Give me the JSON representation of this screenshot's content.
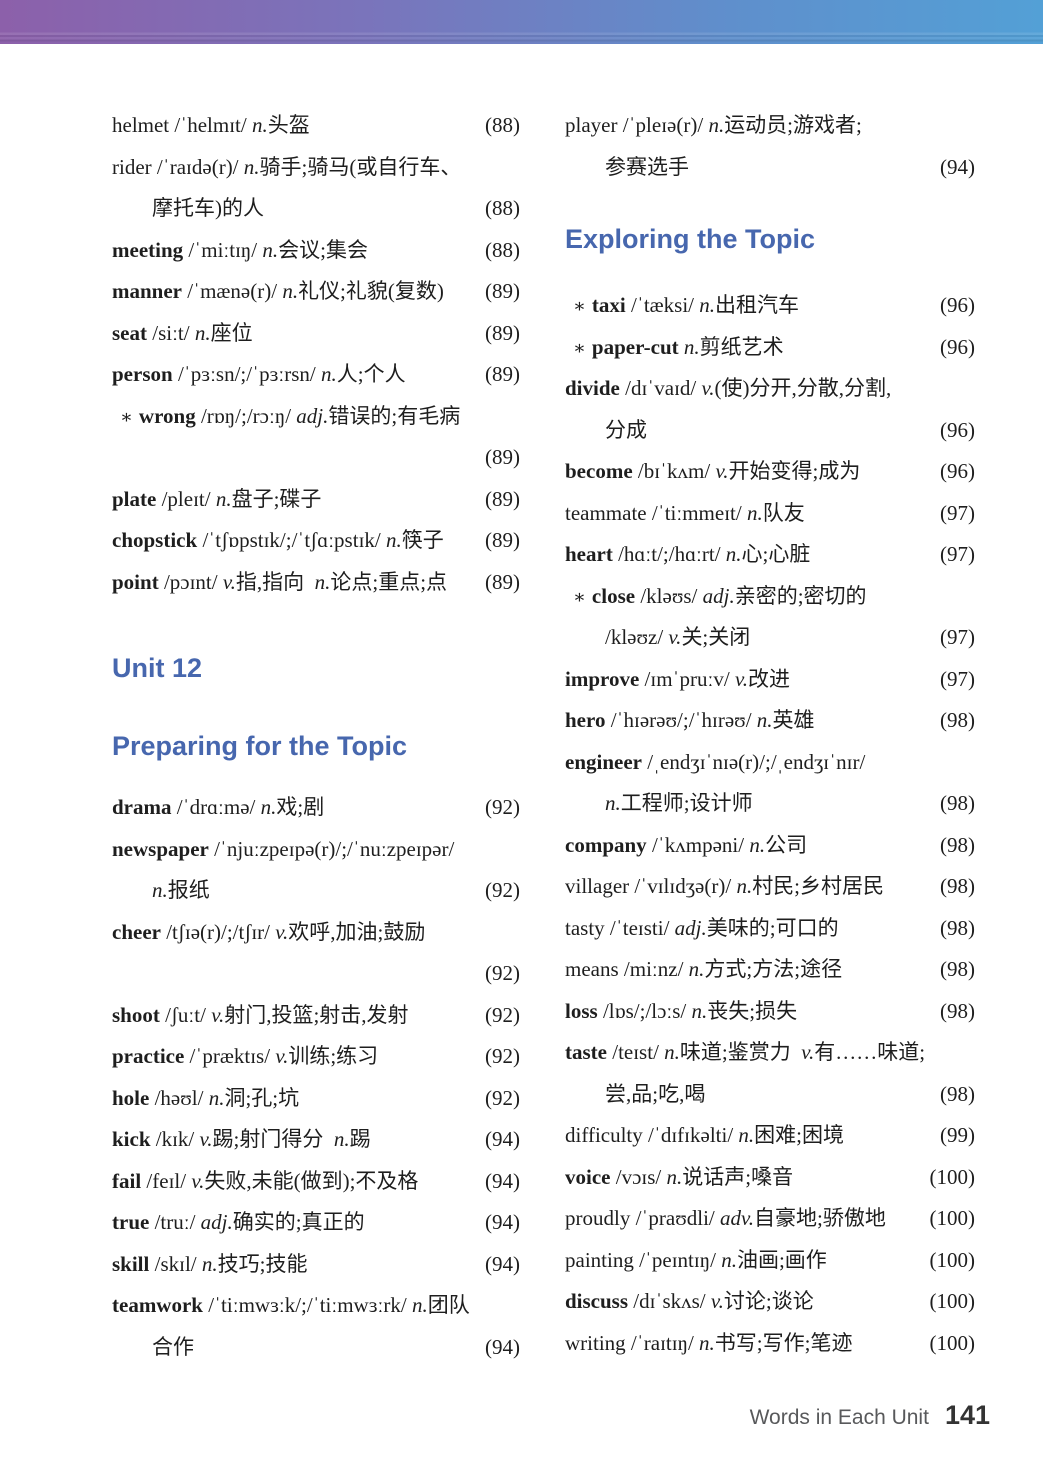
{
  "footer": {
    "label": "Words in Each Unit",
    "page_number": "141"
  },
  "colors": {
    "header_blue": "#4767ae",
    "gradient_left": "#8c60aa",
    "gradient_right": "#53a0d6",
    "body_text": "#1e1e1e",
    "footer_gray": "#58595b"
  },
  "left_column": {
    "unit_header": "Unit 12",
    "section_header": "Preparing for the Topic",
    "entries_top": [
      {
        "star": false,
        "bold": false,
        "word": "helmet",
        "head": " /ˈhelmɪt/ n.头盔",
        "page": "(88)",
        "cont": []
      },
      {
        "star": false,
        "bold": false,
        "word": "rider",
        "head": " /ˈraɪdə(r)/ n.骑手;骑马(或自行车、",
        "page": null,
        "cont": [
          {
            "text": "摩托车)的人",
            "page": "(88)"
          }
        ]
      },
      {
        "star": false,
        "bold": true,
        "word": "meeting",
        "head": " /ˈmiːtɪŋ/ n.会议;集会",
        "page": "(88)",
        "cont": []
      },
      {
        "star": false,
        "bold": true,
        "word": "manner",
        "head": " /ˈmænə(r)/ n.礼仪;礼貌(复数)",
        "page": "(89)",
        "cont": []
      },
      {
        "star": false,
        "bold": true,
        "word": "seat",
        "head": " /siːt/ n.座位",
        "page": "(89)",
        "cont": []
      },
      {
        "star": false,
        "bold": true,
        "word": "person",
        "head": " /ˈpɜːsn/;/ˈpɜːrsn/ n.人;个人",
        "page": "(89)",
        "cont": []
      },
      {
        "star": true,
        "bold": true,
        "word": "wrong",
        "head": " /rɒŋ/;/rɔːŋ/ adj.错误的;有毛病",
        "page": null,
        "cont": [
          {
            "text": "",
            "page": "(89)"
          }
        ]
      },
      {
        "star": false,
        "bold": true,
        "word": "plate",
        "head": " /pleɪt/ n.盘子;碟子",
        "page": "(89)",
        "cont": []
      },
      {
        "star": false,
        "bold": true,
        "word": "chopstick",
        "head": " /ˈtʃɒpstɪk/;/ˈtʃɑːpstɪk/ n.筷子",
        "page": "(89)",
        "cont": []
      },
      {
        "star": false,
        "bold": true,
        "word": "point",
        "head": " /pɔɪnt/ v.指,指向  n.论点;重点;点",
        "page": "(89)",
        "cont": []
      }
    ],
    "entries_bottom": [
      {
        "star": false,
        "bold": true,
        "word": "drama",
        "head": " /ˈdrɑːmə/ n.戏;剧",
        "page": "(92)",
        "cont": []
      },
      {
        "star": false,
        "bold": true,
        "word": "newspaper",
        "head": " /ˈnjuːzpeɪpə(r)/;/ˈnuːzpeɪpər/",
        "page": null,
        "cont": [
          {
            "text": "n.报纸",
            "page": "(92)"
          }
        ]
      },
      {
        "star": false,
        "bold": true,
        "word": "cheer",
        "head": " /tʃɪə(r)/;/tʃɪr/ v.欢呼,加油;鼓励",
        "page": null,
        "cont": [
          {
            "text": "",
            "page": "(92)"
          }
        ]
      },
      {
        "star": false,
        "bold": true,
        "word": "shoot",
        "head": " /ʃuːt/ v.射门,投篮;射击,发射",
        "page": "(92)",
        "cont": []
      },
      {
        "star": false,
        "bold": true,
        "word": "practice",
        "head": " /ˈpræktɪs/ v.训练;练习",
        "page": "(92)",
        "cont": []
      },
      {
        "star": false,
        "bold": true,
        "word": "hole",
        "head": " /həʊl/ n.洞;孔;坑",
        "page": "(92)",
        "cont": []
      },
      {
        "star": false,
        "bold": true,
        "word": "kick",
        "head": " /kɪk/ v.踢;射门得分  n.踢",
        "page": "(94)",
        "cont": []
      },
      {
        "star": false,
        "bold": true,
        "word": "fail",
        "head": " /feɪl/ v.失败,未能(做到);不及格",
        "page": "(94)",
        "cont": []
      },
      {
        "star": false,
        "bold": true,
        "word": "true",
        "head": " /truː/ adj.确实的;真正的",
        "page": "(94)",
        "cont": []
      },
      {
        "star": false,
        "bold": true,
        "word": "skill",
        "head": " /skɪl/ n.技巧;技能",
        "page": "(94)",
        "cont": []
      },
      {
        "star": false,
        "bold": true,
        "word": "teamwork",
        "head": " /ˈtiːmwɜːk/;/ˈtiːmwɜːrk/ n.团队",
        "page": null,
        "cont": [
          {
            "text": "合作",
            "page": "(94)"
          }
        ]
      }
    ]
  },
  "right_column": {
    "section_header": "Exploring the Topic",
    "entries_top": [
      {
        "star": false,
        "bold": false,
        "word": "player",
        "head": " /ˈpleɪə(r)/ n.运动员;游戏者;",
        "page": null,
        "cont": [
          {
            "text": "参赛选手",
            "page": "(94)"
          }
        ]
      }
    ],
    "entries_bottom": [
      {
        "star": true,
        "bold": true,
        "word": "taxi",
        "head": " /ˈtæksi/ n.出租汽车",
        "page": "(96)",
        "cont": []
      },
      {
        "star": true,
        "bold": true,
        "word": "paper-cut",
        "head": " n.剪纸艺术",
        "page": "(96)",
        "cont": []
      },
      {
        "star": false,
        "bold": true,
        "word": "divide",
        "head": " /dɪˈvaɪd/ v.(使)分开,分散,分割,",
        "page": null,
        "cont": [
          {
            "text": "分成",
            "page": "(96)"
          }
        ]
      },
      {
        "star": false,
        "bold": true,
        "word": "become",
        "head": " /bɪˈkʌm/ v.开始变得;成为",
        "page": "(96)",
        "cont": []
      },
      {
        "star": false,
        "bold": false,
        "word": "teammate",
        "head": " /ˈtiːmmeɪt/ n.队友",
        "page": "(97)",
        "cont": []
      },
      {
        "star": false,
        "bold": true,
        "word": "heart",
        "head": " /hɑːt/;/hɑːrt/ n.心;心脏",
        "page": "(97)",
        "cont": []
      },
      {
        "star": true,
        "bold": true,
        "word": "close",
        "head": " /kləʊs/ adj.亲密的;密切的",
        "page": null,
        "cont": [
          {
            "text": "/kləʊz/ v.关;关闭",
            "page": "(97)"
          }
        ]
      },
      {
        "star": false,
        "bold": true,
        "word": "improve",
        "head": " /ɪmˈpruːv/ v.改进",
        "page": "(97)",
        "cont": []
      },
      {
        "star": false,
        "bold": true,
        "word": "hero",
        "head": " /ˈhɪərəʊ/;/ˈhɪrəʊ/ n.英雄",
        "page": "(98)",
        "cont": []
      },
      {
        "star": false,
        "bold": true,
        "word": "engineer",
        "head": " /ˌendʒɪˈnɪə(r)/;/ˌendʒɪˈnɪr/",
        "page": null,
        "cont": [
          {
            "text": "n.工程师;设计师",
            "page": "(98)"
          }
        ]
      },
      {
        "star": false,
        "bold": true,
        "word": "company",
        "head": " /ˈkʌmpəni/ n.公司",
        "page": "(98)",
        "cont": []
      },
      {
        "star": false,
        "bold": false,
        "word": "villager",
        "head": " /ˈvɪlɪdʒə(r)/ n.村民;乡村居民",
        "page": "(98)",
        "cont": []
      },
      {
        "star": false,
        "bold": false,
        "word": "tasty",
        "head": " /ˈteɪsti/ adj.美味的;可口的",
        "page": "(98)",
        "cont": []
      },
      {
        "star": false,
        "bold": false,
        "word": "means",
        "head": " /miːnz/ n.方式;方法;途径",
        "page": "(98)",
        "cont": []
      },
      {
        "star": false,
        "bold": true,
        "word": "loss",
        "head": " /lɒs/;/lɔːs/ n.丧失;损失",
        "page": "(98)",
        "cont": []
      },
      {
        "star": false,
        "bold": true,
        "word": "taste",
        "head": " /teɪst/ n.味道;鉴赏力  v.有……味道;",
        "page": null,
        "cont": [
          {
            "text": "尝,品;吃,喝",
            "page": "(98)"
          }
        ]
      },
      {
        "star": false,
        "bold": false,
        "word": "difficulty",
        "head": " /ˈdɪfɪkəlti/ n.困难;困境",
        "page": "(99)",
        "cont": []
      },
      {
        "star": false,
        "bold": true,
        "word": "voice",
        "head": " /vɔɪs/ n.说话声;嗓音",
        "page": "(100)",
        "cont": []
      },
      {
        "star": false,
        "bold": false,
        "word": "proudly",
        "head": " /ˈpraʊdli/ adv.自豪地;骄傲地",
        "page": "(100)",
        "cont": []
      },
      {
        "star": false,
        "bold": false,
        "word": "painting",
        "head": " /ˈpeɪntɪŋ/ n.油画;画作",
        "page": "(100)",
        "cont": []
      },
      {
        "star": false,
        "bold": true,
        "word": "discuss",
        "head": " /dɪˈskʌs/ v.讨论;谈论",
        "page": "(100)",
        "cont": []
      },
      {
        "star": false,
        "bold": false,
        "word": "writing",
        "head": " /ˈraɪtɪŋ/ n.书写;写作;笔迹",
        "page": "(100)",
        "cont": []
      }
    ]
  }
}
